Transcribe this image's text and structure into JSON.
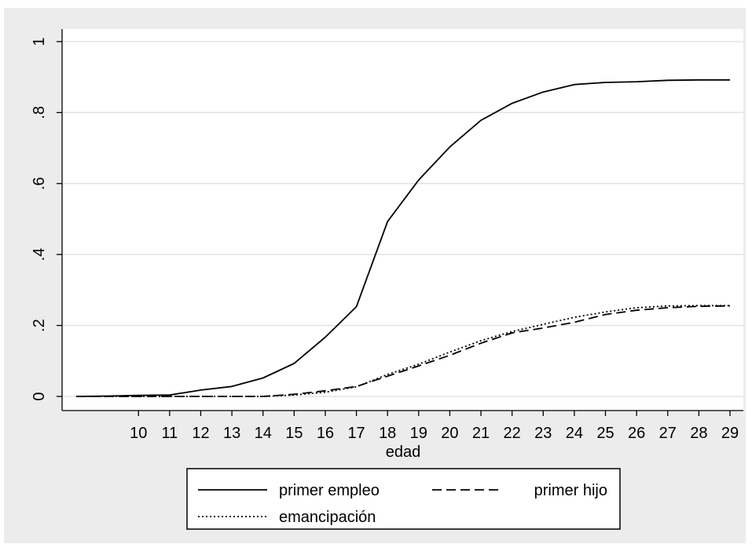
{
  "chart_data": {
    "type": "line",
    "title": "",
    "xlabel": "edad",
    "ylabel": "",
    "xlim": [
      8,
      29
    ],
    "ylim": [
      0,
      1
    ],
    "x_ticks": [
      10,
      11,
      12,
      13,
      14,
      15,
      16,
      17,
      18,
      19,
      20,
      21,
      22,
      23,
      24,
      25,
      26,
      27,
      28,
      29
    ],
    "y_ticks": [
      {
        "value": 0,
        "label": "0"
      },
      {
        "value": 0.2,
        "label": ".2"
      },
      {
        "value": 0.4,
        "label": ".4"
      },
      {
        "value": 0.6,
        "label": ".6"
      },
      {
        "value": 0.8,
        "label": ".8"
      },
      {
        "value": 1,
        "label": "1"
      }
    ],
    "grid": true,
    "legend_position": "bottom",
    "x": [
      8,
      9,
      10,
      11,
      12,
      13,
      14,
      15,
      16,
      17,
      18,
      19,
      20,
      21,
      22,
      23,
      24,
      25,
      26,
      27,
      28,
      29
    ],
    "series": [
      {
        "name": "primer empleo",
        "style": "solid",
        "values": [
          0.0,
          0.001,
          0.003,
          0.004,
          0.018,
          0.028,
          0.052,
          0.093,
          0.167,
          0.253,
          0.493,
          0.61,
          0.703,
          0.778,
          0.826,
          0.858,
          0.879,
          0.885,
          0.887,
          0.891,
          0.892,
          0.892
        ]
      },
      {
        "name": "primer hijo",
        "style": "dashed",
        "values": [
          0.0,
          0.0,
          0.0,
          0.0,
          0.0,
          0.0,
          0.0,
          0.006,
          0.016,
          0.028,
          0.057,
          0.086,
          0.116,
          0.15,
          0.179,
          0.193,
          0.209,
          0.231,
          0.243,
          0.25,
          0.254,
          0.255
        ]
      },
      {
        "name": "emancipación",
        "style": "dotted",
        "values": [
          0.0,
          0.0,
          0.0,
          0.0,
          0.0,
          0.0,
          0.0,
          0.004,
          0.012,
          0.027,
          0.062,
          0.091,
          0.125,
          0.157,
          0.183,
          0.203,
          0.223,
          0.238,
          0.25,
          0.255,
          0.256,
          0.256
        ]
      }
    ]
  },
  "colors": {
    "frame_bg": "#ececec",
    "plot_bg": "#ffffff",
    "grid": "#e3e3e3",
    "line": "#000000"
  }
}
